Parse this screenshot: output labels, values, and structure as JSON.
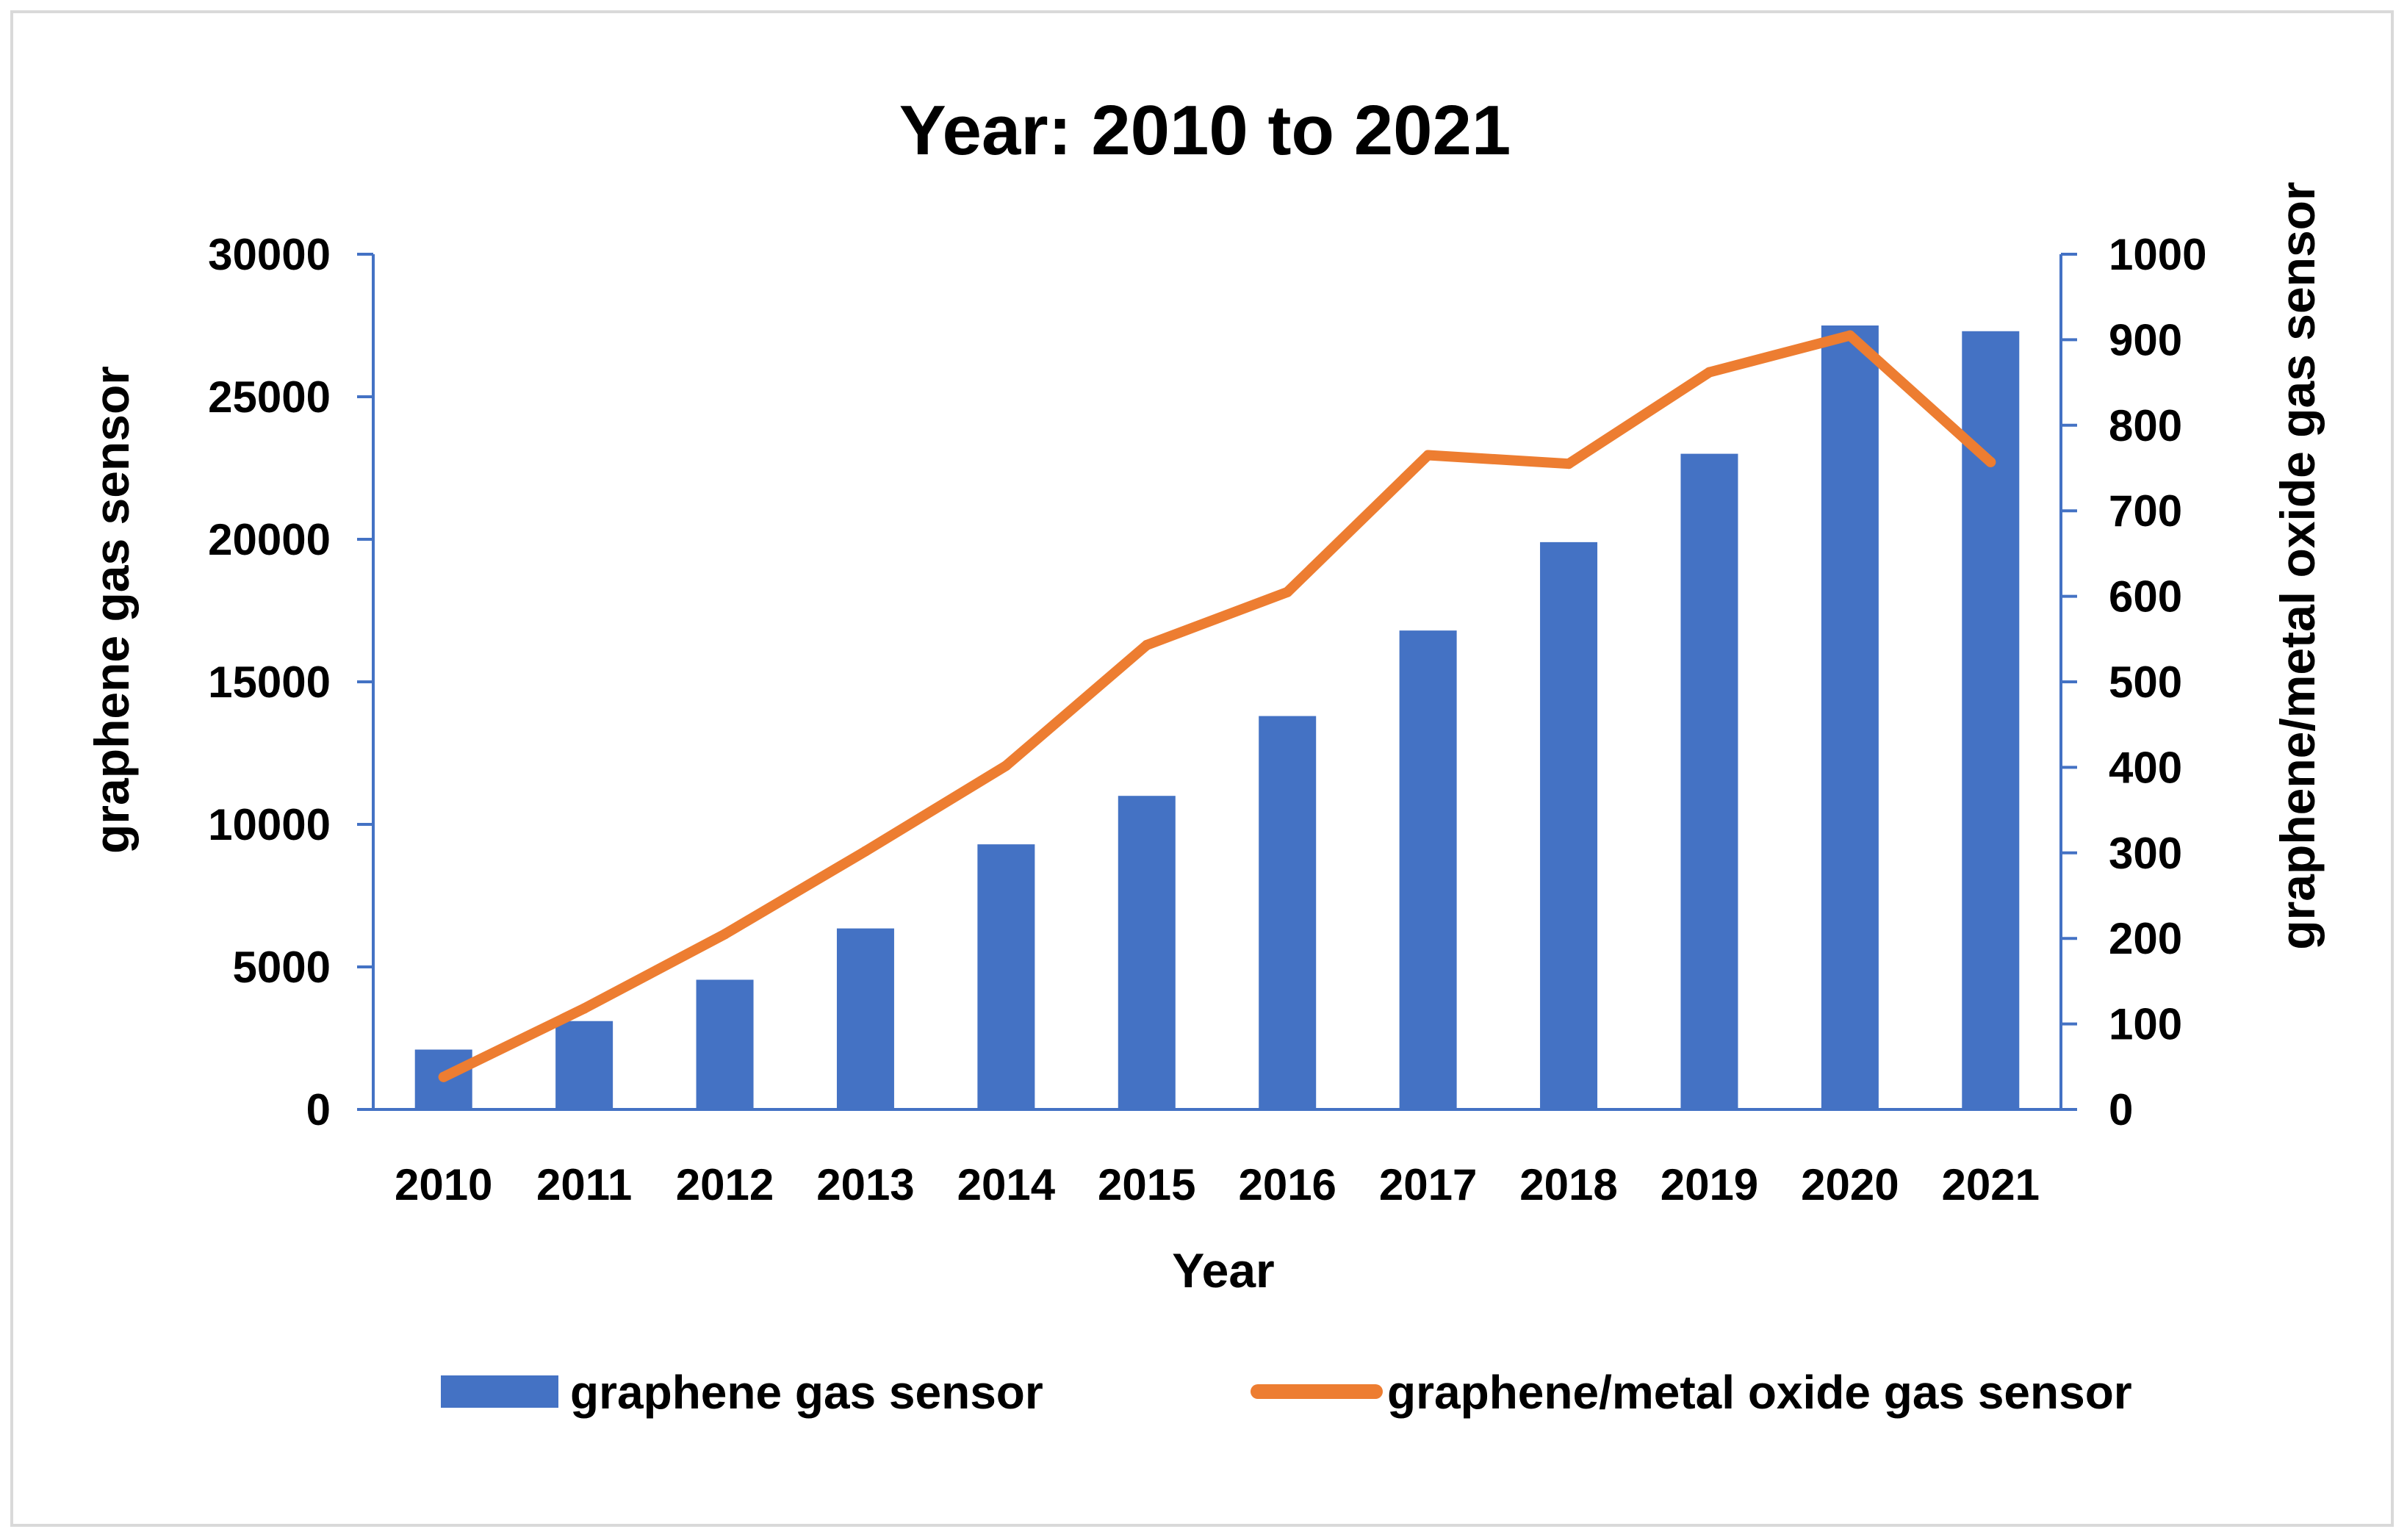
{
  "chart_data": {
    "type": "bar+line",
    "title": "Year: 2010 to 2021",
    "xlabel": "Year",
    "ylabel_left": "graphene gas sensor",
    "ylabel_right": "graphene/metal oxide gas sensor",
    "categories": [
      "2010",
      "2011",
      "2012",
      "2013",
      "2014",
      "2015",
      "2016",
      "2017",
      "2018",
      "2019",
      "2020",
      "2021"
    ],
    "ylim_left": [
      0,
      30000
    ],
    "yticks_left": [
      "0",
      "5000",
      "10000",
      "15000",
      "20000",
      "25000",
      "30000"
    ],
    "ylim_right": [
      0,
      1000
    ],
    "yticks_right": [
      "0",
      "100",
      "200",
      "300",
      "400",
      "500",
      "600",
      "700",
      "800",
      "900",
      "1000"
    ],
    "series": [
      {
        "name": "graphene gas sensor",
        "type": "bar",
        "axis": "left",
        "color": "#4472c4",
        "values": [
          2100,
          3100,
          4550,
          6350,
          9300,
          11000,
          13800,
          16800,
          19900,
          23000,
          27500,
          27300
        ]
      },
      {
        "name": "graphene/metal oxide gas sensor",
        "type": "line",
        "axis": "right",
        "color": "#ed7d31",
        "values": [
          38,
          118,
          205,
          302,
          402,
          543,
          605,
          765,
          755,
          862,
          905,
          757
        ]
      }
    ],
    "grid": false,
    "legend_position": "bottom"
  }
}
